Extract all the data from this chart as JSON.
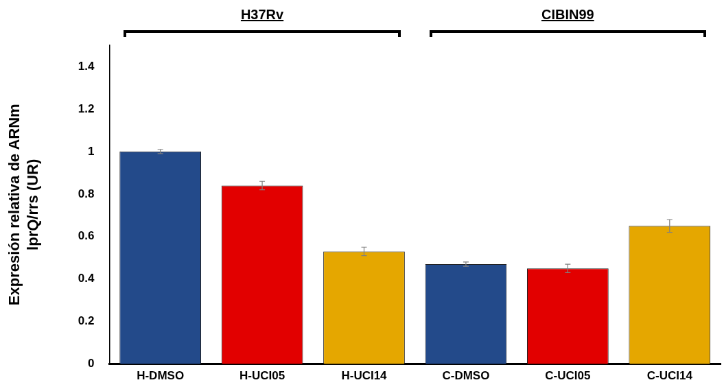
{
  "chart_data": {
    "type": "bar",
    "ylabel": "Expresión relativa de ARNm\nlprQ/rrs (UR)",
    "categories": [
      "H-DMSO",
      "H-UCI05",
      "H-UCI14",
      "C-DMSO",
      "C-UCI05",
      "C-UCI14"
    ],
    "values": [
      1.0,
      0.84,
      0.53,
      0.47,
      0.45,
      0.65
    ],
    "errors": [
      0.01,
      0.02,
      0.02,
      0.01,
      0.02,
      0.03
    ],
    "colors": [
      "#234a8a",
      "#e20000",
      "#e5a700",
      "#234a8a",
      "#e20000",
      "#e5a700"
    ],
    "ylim": [
      0,
      1.5
    ],
    "yticks": [
      0,
      0.2,
      0.4,
      0.6,
      0.8,
      1,
      1.2,
      1.4
    ],
    "grid": false,
    "legend": false,
    "annotations": [
      "H37Rv",
      "CIBIN99"
    ]
  }
}
